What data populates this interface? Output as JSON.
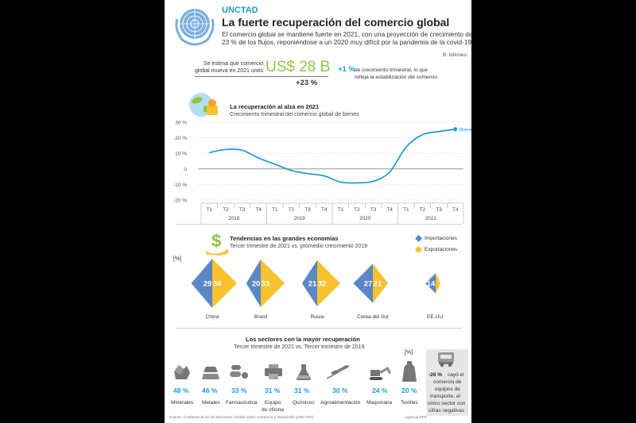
{
  "header": {
    "org": "UNCTAD",
    "title": "La fuerte recuperación del comercio global",
    "subtitle_1": "El comercio global se mantiene fuerte en 2021, con una proyección de crecimiento del",
    "subtitle_2": "23 % de los flujos, reponiéndose  a un 2020 muy difícil por la pandemia de la covid-19.",
    "unit_note": "B: billones"
  },
  "kpis": {
    "estimate_line_1": "Se estima que comercio",
    "estimate_line_2": "global mueva en 2021 unos",
    "value": "US$ 28 B",
    "growth": "+23 %",
    "quarterly_value": "+1 %",
    "quarterly_text_1": "de crecimiento trimestral, lo que",
    "quarterly_text_2": "refleja la estabilización del comercio"
  },
  "chart_data": [
    {
      "type": "line",
      "title": "La recuperación al alza en 2021",
      "subtitle": "Crecimiento trimestral del comercio global de bienes",
      "y_ticks": [
        "30 %",
        "20 %",
        "10 %",
        "0",
        "-10 %",
        "-20 %"
      ],
      "ylim": [
        -20,
        30
      ],
      "quarter_labels": [
        "T1",
        "T2",
        "T3",
        "T4",
        "T1",
        "T2",
        "T3",
        "T4",
        "T1",
        "T2",
        "T3",
        "T4",
        "T1",
        "T2",
        "T3",
        "T4"
      ],
      "years": [
        "2018",
        "2019",
        "2020",
        "2021"
      ],
      "series": [
        {
          "name": "Bienes",
          "color": "#1b9ad6",
          "x": [
            "2018-T1",
            "2018-T2",
            "2018-T3",
            "2018-T4",
            "2019-T1",
            "2019-T2",
            "2019-T3",
            "2019-T4",
            "2020-T1",
            "2020-T2",
            "2020-T3",
            "2020-T4",
            "2021-T1",
            "2021-T2",
            "2021-T3",
            "2021-T4"
          ],
          "values": [
            10.5,
            12.5,
            12,
            7,
            3,
            -1,
            -3,
            -4.5,
            -8.5,
            -9,
            -8,
            -2,
            14,
            22,
            24,
            25.5
          ]
        }
      ]
    },
    {
      "type": "bar",
      "title": "Tendencias en las grandes economías",
      "subtitle": "Tercer trimestre de 2021 vs. promedio crecimiento 2019",
      "unit": "[%]",
      "categories": [
        "China",
        "Brasil",
        "Rusia",
        "Corea del Sur",
        "EE.UU."
      ],
      "series": [
        {
          "name": "Importaciones",
          "color": "#5b87c5",
          "values": [
            29,
            20,
            21,
            27,
            14
          ]
        },
        {
          "name": "Exportaciones",
          "color": "#f8c12f",
          "values": [
            34,
            33,
            32,
            21,
            7
          ]
        }
      ]
    },
    {
      "type": "bar",
      "title": "Los sectores con la mayor recuperación",
      "subtitle": "Tercer trimestre de 2021 vs. Tercer trimestre de 2019",
      "unit": "[%]",
      "categories": [
        "Minerales",
        "Metales",
        "Farmacéutica",
        "Equipo de oficina",
        "Químicos",
        "Agroalimentación",
        "Maquinaria",
        "Textiles"
      ],
      "value_labels": [
        "48 %",
        "46 %",
        "33 %",
        "31 %",
        "31 %",
        "30 %",
        "24 %",
        "20 %"
      ],
      "values": [
        48,
        46,
        33,
        31,
        31,
        30,
        24,
        20
      ],
      "icons": [
        "mineral-icon",
        "metal-ingot-icon",
        "pharma-pills-icon",
        "printer-icon",
        "flask-icon",
        "wheat-icon",
        "excavator-icon",
        "garment-icon"
      ]
    }
  ],
  "sector_extra_labels": {
    "equipo_1": "Equipo",
    "equipo_2": "de oficina"
  },
  "transport_note": {
    "value": "-26 %",
    "line_1": "cayó el",
    "line_2": "comercio de",
    "line_3": "equipos de",
    "line_4": "transporte, el",
    "line_5": "único sector con",
    "line_6": "cifras negativas",
    "icon": "truck-icon"
  },
  "footer": {
    "source": "Fuente: Conferencia de las Naciones Unidas sobre Comercio y Desarrollo (UNCTAD)",
    "agency": "Agencia EFE"
  },
  "colors": {
    "accent_green": "#8dc63f",
    "accent_blue": "#1b9ad6",
    "imports": "#5b87c5",
    "exports": "#f8c12f",
    "ink": "#222"
  }
}
